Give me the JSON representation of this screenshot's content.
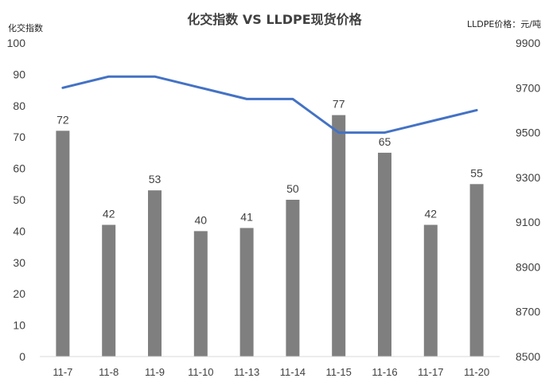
{
  "chart_data": {
    "type": "bar",
    "title": "化交指数 VS LLDPE现货价格",
    "categories": [
      "11-7",
      "11-8",
      "11-9",
      "11-10",
      "11-13",
      "11-14",
      "11-15",
      "11-16",
      "11-17",
      "11-20"
    ],
    "series": [
      {
        "type": "bar",
        "axis": "left",
        "values": [
          72,
          42,
          53,
          40,
          41,
          50,
          77,
          65,
          42,
          55
        ],
        "data_labels": [
          "72",
          "42",
          "53",
          "40",
          "41",
          "50",
          "77",
          "65",
          "42",
          "55"
        ],
        "color": "#7f7f7f"
      },
      {
        "type": "line",
        "axis": "right",
        "values": [
          9700,
          9750,
          9750,
          9700,
          9650,
          9650,
          9500,
          9500,
          9550,
          9600
        ],
        "color": "#4472c4"
      }
    ],
    "left_axis": {
      "label": "化交指数",
      "range": [
        0,
        100
      ],
      "ticks": [
        "0",
        "10",
        "20",
        "30",
        "40",
        "50",
        "60",
        "70",
        "80",
        "90",
        "100"
      ]
    },
    "right_axis": {
      "label": "LLDPE价格：元/吨",
      "range": [
        8500,
        9900
      ],
      "ticks": [
        "8500",
        "8700",
        "8900",
        "9100",
        "9300",
        "9500",
        "9700",
        "9900"
      ]
    },
    "grid": false,
    "legend": "none"
  }
}
